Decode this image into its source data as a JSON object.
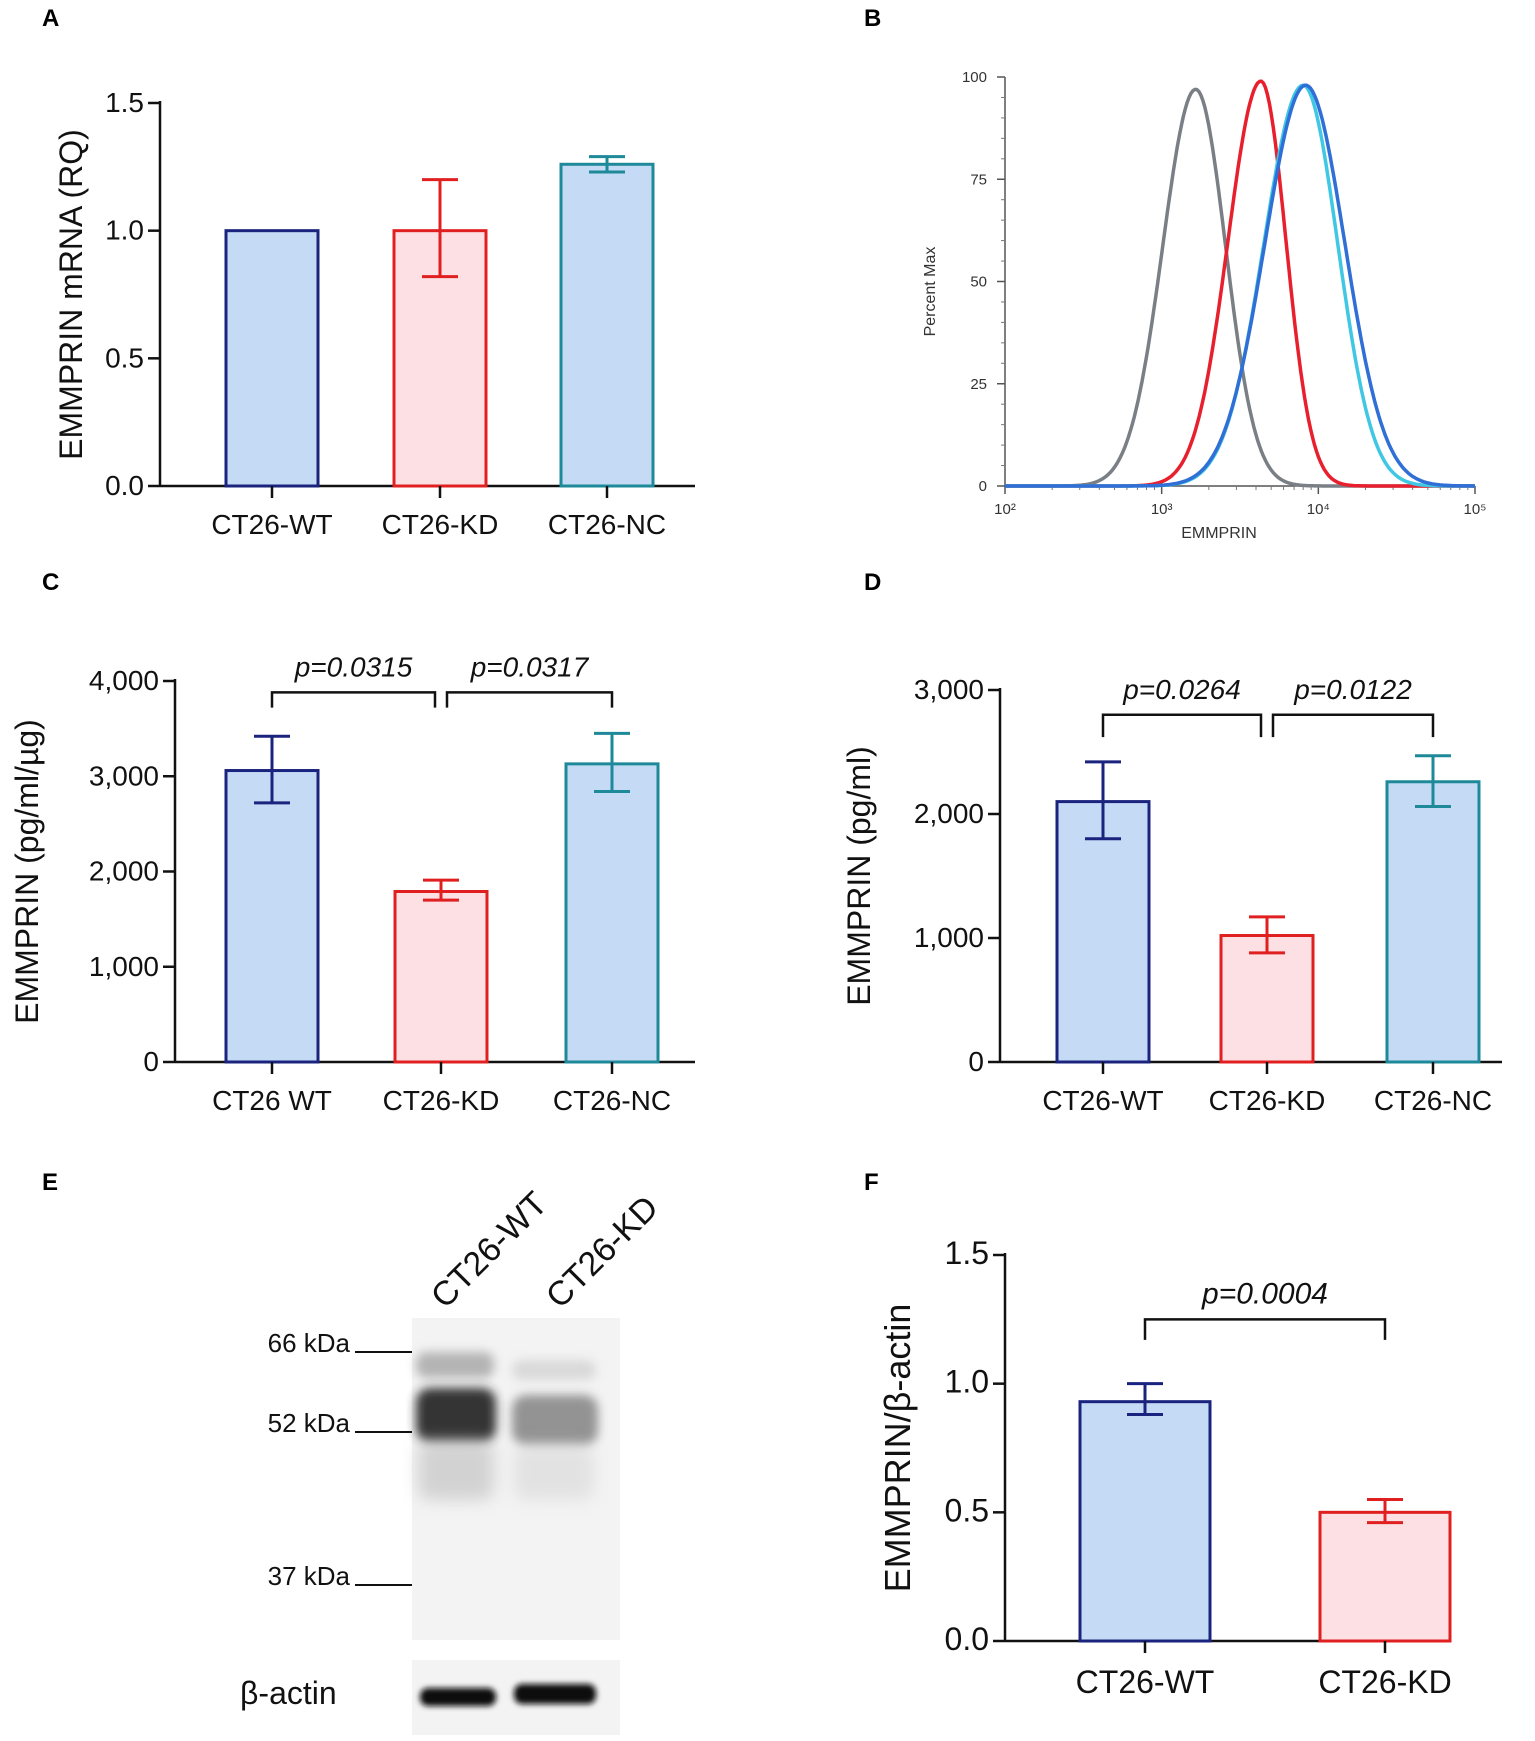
{
  "panel_letters": [
    "A",
    "B",
    "C",
    "D",
    "E",
    "F"
  ],
  "colors": {
    "wt_fill": "#c5dbf5",
    "wt_stroke": "#1a237e",
    "kd_fill": "#fde0e3",
    "kd_stroke": "#e02020",
    "nc_fill": "#c5dbf5",
    "nc_stroke": "#1e8a99",
    "hist_gray": "#7a7f86",
    "hist_red": "#e8202e",
    "hist_cyan": "#3fc7e4",
    "hist_blue": "#2f6fd6"
  },
  "chart_data": [
    {
      "id": "A",
      "type": "bar",
      "categories": [
        "CT26-WT",
        "CT26-KD",
        "CT26-NC"
      ],
      "values": [
        1.0,
        1.0,
        1.26
      ],
      "error_hi": [
        1.0,
        1.2,
        1.29
      ],
      "error_lo": [
        1.0,
        0.82,
        1.23
      ],
      "ylabel": "EMMPRIN mRNA (RQ)",
      "ylim": [
        0,
        1.5
      ],
      "yticks": [
        "0.0",
        "0.5",
        "1.0",
        "1.5"
      ],
      "ytick_values": [
        0,
        0.5,
        1.0,
        1.5
      ],
      "pvalues": []
    },
    {
      "id": "B",
      "type": "line",
      "xlabel": "EMMPRIN",
      "ylabel": "Percent Max",
      "xscale": "log",
      "xlim": [
        100,
        100000
      ],
      "ylim": [
        0,
        100
      ],
      "xticks": [
        "10²",
        "10³",
        "10⁴",
        "10⁵"
      ],
      "xtick_values": [
        100,
        1000,
        10000,
        100000
      ],
      "yticks": [
        "0",
        "25",
        "50",
        "75",
        "100"
      ],
      "ytick_values": [
        0,
        25,
        50,
        75,
        100
      ],
      "series": [
        {
          "name": "gray",
          "mu": 1650,
          "s_left": 0.21,
          "s_right": 0.19,
          "peak": 97
        },
        {
          "name": "red",
          "mu": 4300,
          "s_left": 0.21,
          "s_right": 0.16,
          "peak": 99
        },
        {
          "name": "cyan",
          "mu": 8000,
          "s_left": 0.25,
          "s_right": 0.22,
          "peak": 98
        },
        {
          "name": "blue",
          "mu": 8300,
          "s_left": 0.26,
          "s_right": 0.25,
          "peak": 98
        }
      ]
    },
    {
      "id": "C",
      "type": "bar",
      "categories": [
        "CT26 WT",
        "CT26-KD",
        "CT26-NC"
      ],
      "values": [
        3060,
        1790,
        3130
      ],
      "error_hi": [
        3420,
        1910,
        3450
      ],
      "error_lo": [
        2720,
        1700,
        2840
      ],
      "ylabel": "EMMPRIN (pg/ml/µg)",
      "ylim": [
        0,
        4000
      ],
      "yticks": [
        "0",
        "1,000",
        "2,000",
        "3,000",
        "4,000"
      ],
      "ytick_values": [
        0,
        1000,
        2000,
        3000,
        4000
      ],
      "pvalues": [
        {
          "text": "p=0.0315",
          "from": 0,
          "to": 1,
          "y": 3880,
          "drop": 3720
        },
        {
          "text": "p=0.0317",
          "from": 1,
          "to": 2,
          "y": 3880,
          "drop": 3720
        }
      ]
    },
    {
      "id": "D",
      "type": "bar",
      "categories": [
        "CT26-WT",
        "CT26-KD",
        "CT26-NC"
      ],
      "values": [
        2100,
        1020,
        2260
      ],
      "error_hi": [
        2420,
        1170,
        2470
      ],
      "error_lo": [
        1800,
        880,
        2060
      ],
      "ylabel": "EMMPRIN (pg/ml)",
      "ylim": [
        0,
        3000
      ],
      "yticks": [
        "0",
        "1,000",
        "2,000",
        "3,000"
      ],
      "ytick_values": [
        0,
        1000,
        2000,
        3000
      ],
      "pvalues": [
        {
          "text": "p=0.0264",
          "from": 0,
          "to": 1,
          "y": 2800,
          "drop": 2620
        },
        {
          "text": "p=0.0122",
          "from": 1,
          "to": 2,
          "y": 2800,
          "drop": 2620
        }
      ]
    },
    {
      "id": "F",
      "type": "bar",
      "categories": [
        "CT26-WT",
        "CT26-KD"
      ],
      "values": [
        0.93,
        0.5
      ],
      "error_hi": [
        1.0,
        0.55
      ],
      "error_lo": [
        0.88,
        0.46
      ],
      "ylabel": "EMMPRIN/β-actin",
      "ylim": [
        0,
        1.5
      ],
      "yticks": [
        "0.0",
        "0.5",
        "1.0",
        "1.5"
      ],
      "ytick_values": [
        0,
        0.5,
        1.0,
        1.5
      ],
      "pvalues": [
        {
          "text": "p=0.0004",
          "from": 0,
          "to": 1,
          "y": 1.25,
          "drop": 1.17
        }
      ]
    }
  ],
  "blot": {
    "lanes": [
      "CT26-WT",
      "CT26-KD"
    ],
    "markers": [
      "66 kDa",
      "52 kDa",
      "37 kDa"
    ],
    "loading_control": "β-actin"
  }
}
